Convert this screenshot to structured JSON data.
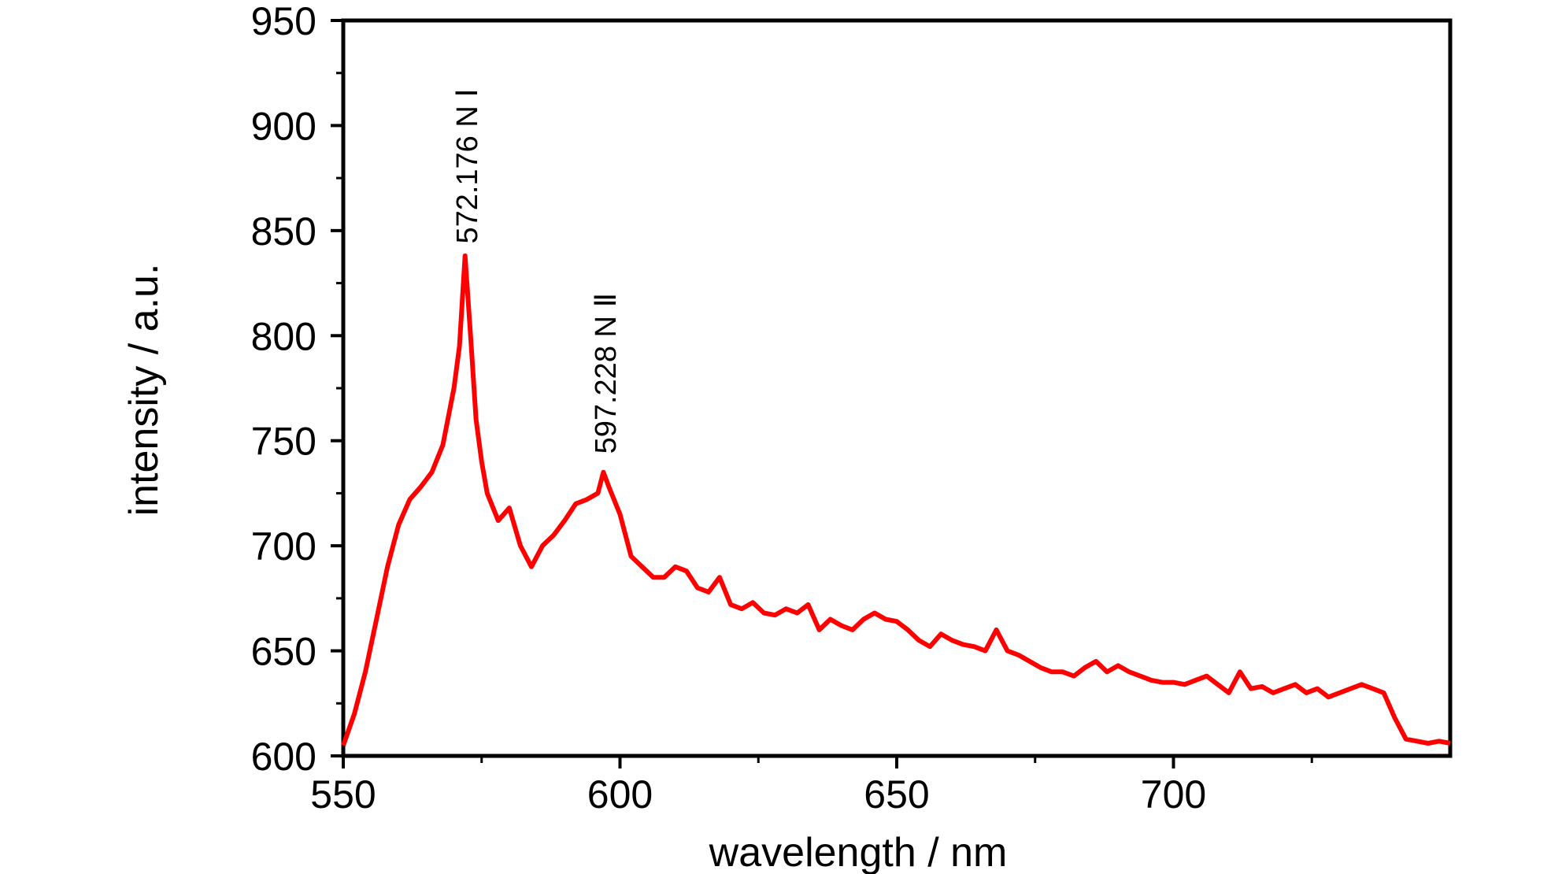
{
  "chart_data": {
    "type": "line",
    "title": "",
    "xlabel": "wavelength / nm",
    "ylabel": "intensity / a.u.",
    "xlim": [
      550,
      750
    ],
    "ylim": [
      600,
      950
    ],
    "xticks": [
      550,
      600,
      650,
      700
    ],
    "xtick_labels": [
      "550",
      "600",
      "650",
      "700"
    ],
    "yticks": [
      600,
      650,
      700,
      750,
      800,
      850,
      900,
      950
    ],
    "ytick_labels": [
      "600",
      "650",
      "700",
      "750",
      "800",
      "850",
      "900",
      "950"
    ],
    "grid": false,
    "legend": "none",
    "series": [
      {
        "color": "#ff0000",
        "x": [
          550,
          552,
          554,
          556,
          558,
          560,
          562,
          564,
          566,
          568,
          570,
          571,
          572,
          573,
          574,
          575,
          576,
          578,
          580,
          582,
          584,
          586,
          588,
          590,
          592,
          594,
          596,
          597,
          598,
          600,
          602,
          604,
          606,
          608,
          610,
          612,
          614,
          616,
          618,
          620,
          622,
          624,
          626,
          628,
          630,
          632,
          634,
          636,
          638,
          640,
          642,
          644,
          646,
          648,
          650,
          652,
          654,
          656,
          658,
          660,
          662,
          664,
          666,
          668,
          670,
          672,
          674,
          676,
          678,
          680,
          682,
          684,
          686,
          688,
          690,
          692,
          694,
          696,
          698,
          700,
          702,
          704,
          706,
          708,
          710,
          712,
          714,
          716,
          718,
          720,
          722,
          724,
          726,
          728,
          730,
          732,
          734,
          736,
          738,
          740,
          742,
          744,
          746,
          748,
          750
        ],
        "y": [
          605,
          620,
          640,
          665,
          690,
          710,
          722,
          728,
          735,
          748,
          775,
          795,
          838,
          800,
          760,
          740,
          725,
          712,
          718,
          700,
          690,
          700,
          705,
          712,
          720,
          722,
          725,
          735,
          728,
          715,
          695,
          690,
          685,
          685,
          690,
          688,
          680,
          678,
          685,
          672,
          670,
          673,
          668,
          667,
          670,
          668,
          672,
          660,
          665,
          662,
          660,
          665,
          668,
          665,
          664,
          660,
          655,
          652,
          658,
          655,
          653,
          652,
          650,
          660,
          650,
          648,
          645,
          642,
          640,
          640,
          638,
          642,
          645,
          640,
          643,
          640,
          638,
          636,
          635,
          635,
          634,
          636,
          638,
          634,
          630,
          640,
          632,
          633,
          630,
          632,
          634,
          630,
          632,
          628,
          630,
          632,
          634,
          632,
          630,
          618,
          608,
          607,
          606,
          607,
          606
        ]
      }
    ],
    "annotations": [
      {
        "text": "572.176 N Ⅰ",
        "x": 572.176,
        "y": 840
      },
      {
        "text": "597.228 N Ⅱ",
        "x": 597.228,
        "y": 740
      }
    ]
  }
}
